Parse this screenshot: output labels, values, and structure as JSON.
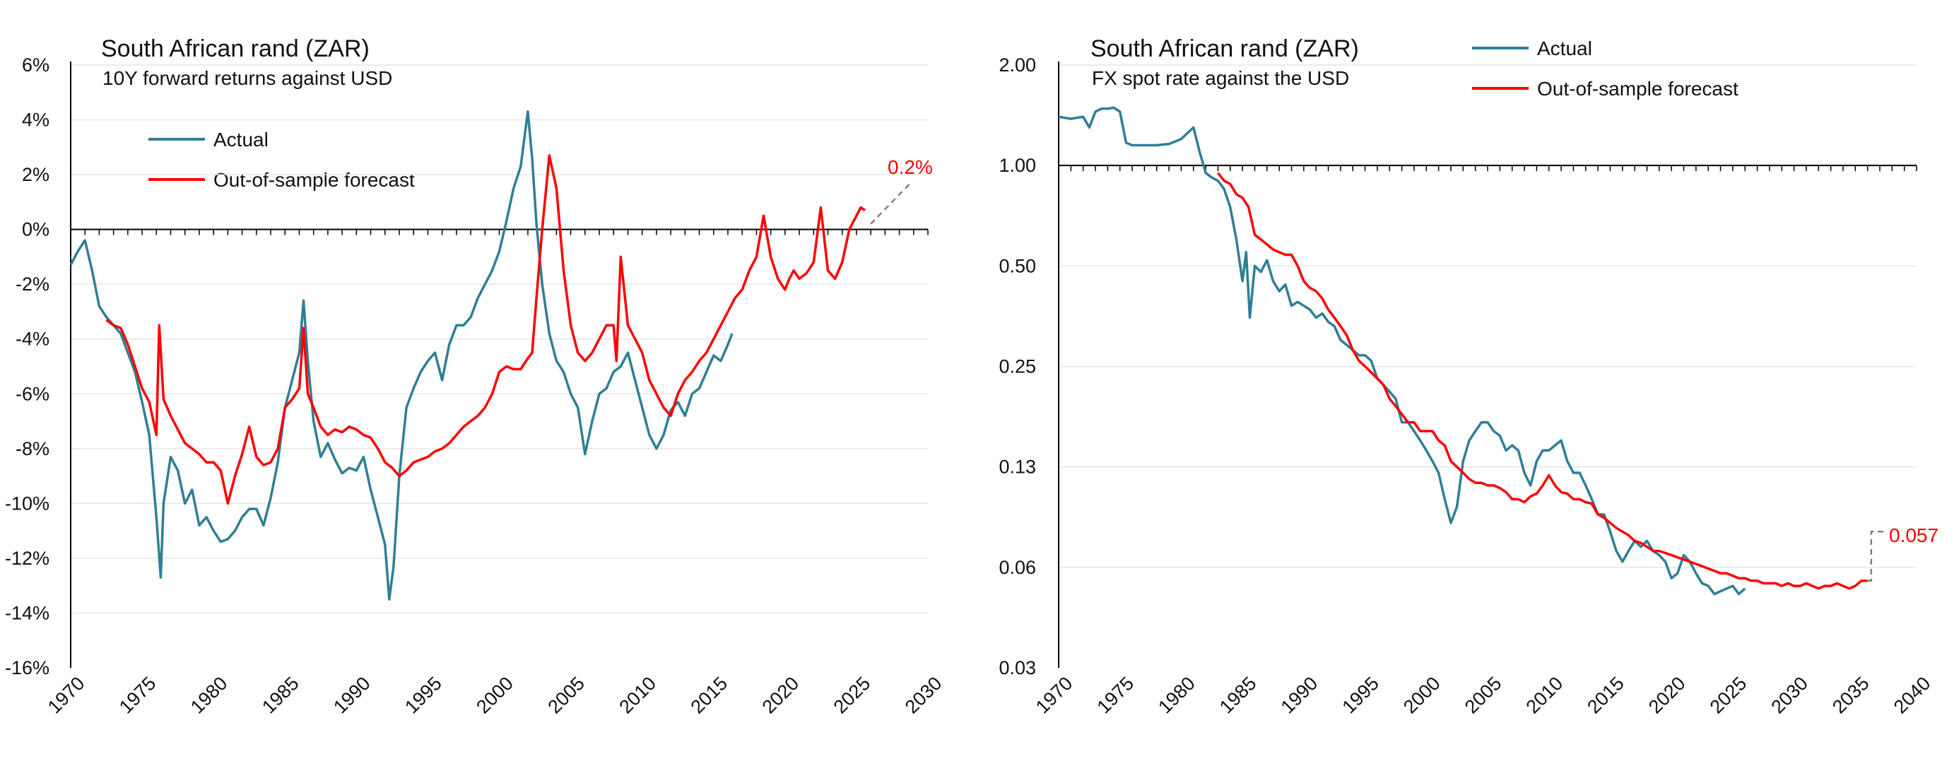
{
  "chart_data": [
    {
      "type": "line",
      "title": "South African rand (ZAR)",
      "subtitle": "10Y forward returns against USD",
      "xlabel": "",
      "ylabel": "",
      "xlim": [
        1970,
        2030
      ],
      "ylim": [
        -16,
        6
      ],
      "x_ticks": [
        "1970",
        "1975",
        "1980",
        "1985",
        "1990",
        "1995",
        "2000",
        "2005",
        "2010",
        "2015",
        "2020",
        "2025",
        "2030"
      ],
      "y_ticks": [
        "6%",
        "4%",
        "2%",
        "0%",
        "-2%",
        "-4%",
        "-6%",
        "-8%",
        "-10%",
        "-12%",
        "-14%",
        "-16%"
      ],
      "legend": {
        "placement": "top-left",
        "entries": [
          "Actual",
          "Out-of-sample forecast"
        ]
      },
      "annotation": {
        "text": "0.2%",
        "color": "#ff0000"
      },
      "series": [
        {
          "name": "Actual",
          "color": "#2e7f96",
          "x": [
            1970,
            1970.5,
            1971,
            1971.5,
            1972,
            1972.5,
            1973,
            1973.5,
            1974,
            1974.5,
            1975,
            1975.5,
            1976,
            1976.3,
            1976.5,
            1977,
            1977.5,
            1978,
            1978.5,
            1979,
            1979.5,
            1980,
            1980.5,
            1981,
            1981.5,
            1982,
            1982.5,
            1983,
            1983.5,
            1984,
            1984.5,
            1985,
            1985.5,
            1986,
            1986.3,
            1986.6,
            1987,
            1987.5,
            1988,
            1988.5,
            1989,
            1989.5,
            1990,
            1990.5,
            1991,
            1991.5,
            1992,
            1992.3,
            1992.6,
            1993,
            1993.5,
            1994,
            1994.5,
            1995,
            1995.5,
            1996,
            1996.5,
            1997,
            1997.5,
            1998,
            1998.5,
            1999,
            1999.5,
            2000,
            2000.5,
            2001,
            2001.5,
            2002,
            2002.3,
            2002.6,
            2003,
            2003.5,
            2004,
            2004.5,
            2005,
            2005.5,
            2006,
            2006.5,
            2007,
            2007.5,
            2008,
            2008.5,
            2009,
            2009.5,
            2010,
            2010.5,
            2011,
            2011.5,
            2012,
            2012.5,
            2013,
            2013.5,
            2014,
            2014.5,
            2015,
            2015.5,
            2016,
            2016.3
          ],
          "y": [
            -1.3,
            -0.8,
            -0.4,
            -1.5,
            -2.8,
            -3.2,
            -3.5,
            -3.8,
            -4.5,
            -5.2,
            -6.3,
            -7.5,
            -10.5,
            -12.7,
            -10,
            -8.3,
            -8.8,
            -10,
            -9.5,
            -10.8,
            -10.5,
            -11,
            -11.4,
            -11.3,
            -11,
            -10.5,
            -10.2,
            -10.2,
            -10.8,
            -9.8,
            -8.5,
            -6.5,
            -5.5,
            -4.5,
            -2.6,
            -4.8,
            -7,
            -8.3,
            -7.8,
            -8.4,
            -8.9,
            -8.7,
            -8.8,
            -8.3,
            -9.5,
            -10.5,
            -11.5,
            -13.5,
            -12.3,
            -9,
            -6.5,
            -5.8,
            -5.2,
            -4.8,
            -4.5,
            -5.5,
            -4.2,
            -3.5,
            -3.5,
            -3.2,
            -2.5,
            -2,
            -1.5,
            -0.8,
            0.3,
            1.5,
            2.3,
            4.3,
            2.6,
            0.2,
            -2,
            -3.8,
            -4.8,
            -5.2,
            -6,
            -6.5,
            -8.2,
            -7,
            -6,
            -5.8,
            -5.2,
            -5,
            -4.5,
            -5.5,
            -6.5,
            -7.5,
            -8,
            -7.5,
            -6.6,
            -6.3,
            -6.8,
            -6,
            -5.8,
            -5.2,
            -4.6,
            -4.8,
            -4.2,
            -3.8
          ]
        },
        {
          "name": "Out-of-sample forecast",
          "color": "#ff0000",
          "x": [
            1972.5,
            1973,
            1973.5,
            1974,
            1974.5,
            1975,
            1975.5,
            1976,
            1976.2,
            1976.5,
            1977,
            1977.5,
            1978,
            1978.5,
            1979,
            1979.5,
            1980,
            1980.5,
            1981,
            1981.5,
            1982,
            1982.5,
            1983,
            1983.5,
            1984,
            1984.5,
            1985,
            1985.5,
            1986,
            1986.3,
            1986.6,
            1987,
            1987.5,
            1988,
            1988.5,
            1989,
            1989.5,
            1990,
            1990.5,
            1991,
            1991.5,
            1992,
            1992.5,
            1993,
            1993.5,
            1994,
            1994.5,
            1995,
            1995.5,
            1996,
            1996.5,
            1997,
            1997.5,
            1998,
            1998.5,
            1999,
            1999.5,
            2000,
            2000.5,
            2001,
            2001.5,
            2002,
            2002.3,
            2002.6,
            2003,
            2003.5,
            2004,
            2004.5,
            2005,
            2005.5,
            2006,
            2006.5,
            2007,
            2007.5,
            2008,
            2008.2,
            2008.5,
            2009,
            2009.5,
            2010,
            2010.5,
            2011,
            2011.5,
            2012,
            2012.5,
            2013,
            2013.5,
            2014,
            2014.5,
            2015,
            2015.5,
            2016,
            2016.5,
            2017,
            2017.5,
            2018,
            2018.5,
            2019,
            2019.5,
            2020,
            2020.3,
            2020.6,
            2021,
            2021.5,
            2022,
            2022.5,
            2023,
            2023.5,
            2024,
            2024.5,
            2025,
            2025.3,
            2025.6
          ],
          "y": [
            -3.3,
            -3.5,
            -3.6,
            -4.2,
            -5,
            -5.8,
            -6.3,
            -7.5,
            -3.5,
            -6.2,
            -6.8,
            -7.3,
            -7.8,
            -8,
            -8.2,
            -8.5,
            -8.5,
            -8.8,
            -10,
            -9,
            -8.2,
            -7.2,
            -8.3,
            -8.6,
            -8.5,
            -8,
            -6.5,
            -6.2,
            -5.8,
            -3.6,
            -6,
            -6.5,
            -7.2,
            -7.5,
            -7.3,
            -7.4,
            -7.2,
            -7.3,
            -7.5,
            -7.6,
            -8,
            -8.5,
            -8.7,
            -9,
            -8.8,
            -8.5,
            -8.4,
            -8.3,
            -8.1,
            -8,
            -7.8,
            -7.5,
            -7.2,
            -7,
            -6.8,
            -6.5,
            -6,
            -5.2,
            -5,
            -5.1,
            -5.1,
            -4.7,
            -4.5,
            -2.5,
            0,
            2.7,
            1.5,
            -1.5,
            -3.5,
            -4.5,
            -4.8,
            -4.5,
            -4,
            -3.5,
            -3.5,
            -4.8,
            -1,
            -3.5,
            -4,
            -4.5,
            -5.5,
            -6,
            -6.5,
            -6.8,
            -6,
            -5.5,
            -5.2,
            -4.8,
            -4.5,
            -4,
            -3.5,
            -3,
            -2.5,
            -2.2,
            -1.5,
            -1,
            0.5,
            -1,
            -1.8,
            -2.2,
            -1.8,
            -1.5,
            -1.8,
            -1.6,
            -1.2,
            0.8,
            -1.5,
            -1.8,
            -1.2,
            0,
            0.5,
            0.8,
            0.7
          ]
        },
        {
          "name": "Extrapolation",
          "color": "#808080",
          "dashed": true,
          "x": [
            2026,
            2028.8
          ],
          "y": [
            0.2,
            1.7
          ]
        }
      ]
    },
    {
      "type": "line",
      "title": "South African rand (ZAR)",
      "subtitle": "FX spot rate against the USD",
      "xlabel": "",
      "ylabel": "",
      "xlim": [
        1970,
        2040
      ],
      "ylim": [
        0.03,
        2.0
      ],
      "y_scale": "log",
      "x_ticks": [
        "1970",
        "1975",
        "1980",
        "1985",
        "1990",
        "1995",
        "2000",
        "2005",
        "2010",
        "2015",
        "2020",
        "2025",
        "2030",
        "2035",
        "2040"
      ],
      "y_ticks": [
        {
          "label": "2.00",
          "value": 2
        },
        {
          "label": "1.00",
          "value": 1
        },
        {
          "label": "0.50",
          "value": 0.5
        },
        {
          "label": "0.25",
          "value": 0.25
        },
        {
          "label": "0.13",
          "value": 0.125
        },
        {
          "label": "0.06",
          "value": 0.0625
        },
        {
          "label": "0.03",
          "value": 0.03125
        }
      ],
      "legend": {
        "placement": "top-center",
        "entries": [
          "Actual",
          "Out-of-sample forecast"
        ]
      },
      "annotation": {
        "text": "0.057",
        "color": "#ff0000"
      },
      "series": [
        {
          "name": "Actual",
          "color": "#2e7f96",
          "x": [
            1970,
            1971,
            1972,
            1972.5,
            1973,
            1973.5,
            1974,
            1974.5,
            1975,
            1975.5,
            1976,
            1977,
            1978,
            1979,
            1980,
            1980.5,
            1981,
            1981.5,
            1982,
            1982.5,
            1983,
            1983.5,
            1984,
            1984.5,
            1985,
            1985.3,
            1985.6,
            1986,
            1986.5,
            1987,
            1987.5,
            1988,
            1988.5,
            1989,
            1989.5,
            1990,
            1990.5,
            1991,
            1991.5,
            1992,
            1992.5,
            1993,
            1993.5,
            1994,
            1994.5,
            1995,
            1995.5,
            1996,
            1996.5,
            1997,
            1997.5,
            1998,
            1998.5,
            1999,
            1999.5,
            2000,
            2000.5,
            2001,
            2001.5,
            2002,
            2002.5,
            2003,
            2003.5,
            2004,
            2004.5,
            2005,
            2005.5,
            2006,
            2006.5,
            2007,
            2007.5,
            2008,
            2008.5,
            2009,
            2009.5,
            2010,
            2010.5,
            2011,
            2011.5,
            2012,
            2012.5,
            2013,
            2013.5,
            2014,
            2014.5,
            2015,
            2015.5,
            2016,
            2016.5,
            2017,
            2017.5,
            2018,
            2018.5,
            2019,
            2019.5,
            2020,
            2020.5,
            2021,
            2021.5,
            2022,
            2022.5,
            2023,
            2023.5,
            2024,
            2024.5,
            2025,
            2025.5,
            2026
          ],
          "y": [
            1.4,
            1.38,
            1.4,
            1.3,
            1.45,
            1.48,
            1.48,
            1.49,
            1.45,
            1.17,
            1.15,
            1.15,
            1.15,
            1.16,
            1.2,
            1.25,
            1.3,
            1.1,
            0.95,
            0.92,
            0.9,
            0.85,
            0.75,
            0.6,
            0.45,
            0.55,
            0.35,
            0.5,
            0.48,
            0.52,
            0.45,
            0.42,
            0.44,
            0.38,
            0.39,
            0.38,
            0.37,
            0.35,
            0.36,
            0.34,
            0.33,
            0.3,
            0.29,
            0.28,
            0.27,
            0.27,
            0.26,
            0.23,
            0.22,
            0.21,
            0.2,
            0.17,
            0.17,
            0.16,
            0.15,
            0.14,
            0.13,
            0.12,
            0.1,
            0.085,
            0.095,
            0.13,
            0.15,
            0.16,
            0.17,
            0.17,
            0.16,
            0.155,
            0.14,
            0.145,
            0.14,
            0.12,
            0.11,
            0.13,
            0.14,
            0.14,
            0.145,
            0.15,
            0.13,
            0.12,
            0.12,
            0.11,
            0.1,
            0.09,
            0.09,
            0.08,
            0.07,
            0.065,
            0.07,
            0.075,
            0.072,
            0.075,
            0.07,
            0.068,
            0.065,
            0.058,
            0.06,
            0.068,
            0.065,
            0.06,
            0.056,
            0.055,
            0.052,
            0.053,
            0.054,
            0.055,
            0.052,
            0.054
          ]
        },
        {
          "name": "Out-of-sample forecast",
          "color": "#ff0000",
          "x": [
            1983,
            1983.5,
            1984,
            1984.5,
            1985,
            1985.5,
            1986,
            1986.5,
            1987,
            1987.5,
            1988,
            1988.5,
            1989,
            1989.5,
            1990,
            1990.5,
            1991,
            1991.5,
            1992,
            1992.5,
            1993,
            1993.5,
            1994,
            1994.5,
            1995,
            1995.5,
            1996,
            1996.5,
            1997,
            1997.5,
            1998,
            1998.5,
            1999,
            1999.5,
            2000,
            2000.5,
            2001,
            2001.5,
            2002,
            2002.5,
            2003,
            2003.5,
            2004,
            2004.5,
            2005,
            2005.5,
            2006,
            2006.5,
            2007,
            2007.5,
            2008,
            2008.5,
            2009,
            2009.5,
            2010,
            2010.5,
            2011,
            2011.5,
            2012,
            2012.5,
            2013,
            2013.5,
            2014,
            2014.5,
            2015,
            2015.5,
            2016,
            2016.5,
            2017,
            2017.5,
            2018,
            2018.5,
            2019,
            2019.5,
            2020,
            2020.5,
            2021,
            2021.5,
            2022,
            2022.5,
            2023,
            2023.5,
            2024,
            2024.5,
            2025,
            2025.5,
            2026,
            2026.5,
            2027,
            2027.5,
            2028,
            2028.5,
            2029,
            2029.5,
            2030,
            2030.5,
            2031,
            2031.5,
            2032,
            2032.5,
            2033,
            2033.5,
            2034,
            2034.5,
            2035,
            2035.5,
            2036
          ],
          "y": [
            0.95,
            0.9,
            0.88,
            0.82,
            0.8,
            0.75,
            0.62,
            0.6,
            0.58,
            0.56,
            0.55,
            0.54,
            0.54,
            0.5,
            0.45,
            0.43,
            0.42,
            0.4,
            0.37,
            0.35,
            0.33,
            0.31,
            0.28,
            0.26,
            0.25,
            0.24,
            0.23,
            0.22,
            0.2,
            0.19,
            0.18,
            0.17,
            0.17,
            0.16,
            0.16,
            0.16,
            0.15,
            0.145,
            0.13,
            0.125,
            0.12,
            0.115,
            0.112,
            0.112,
            0.11,
            0.11,
            0.108,
            0.105,
            0.1,
            0.1,
            0.098,
            0.102,
            0.104,
            0.11,
            0.118,
            0.11,
            0.105,
            0.104,
            0.1,
            0.1,
            0.098,
            0.097,
            0.09,
            0.088,
            0.085,
            0.082,
            0.08,
            0.078,
            0.075,
            0.074,
            0.072,
            0.07,
            0.07,
            0.069,
            0.068,
            0.067,
            0.066,
            0.065,
            0.064,
            0.063,
            0.062,
            0.061,
            0.06,
            0.06,
            0.059,
            0.058,
            0.058,
            0.057,
            0.057,
            0.056,
            0.056,
            0.056,
            0.055,
            0.056,
            0.055,
            0.055,
            0.056,
            0.055,
            0.054,
            0.055,
            0.055,
            0.056,
            0.055,
            0.054,
            0.055,
            0.057,
            0.057
          ]
        },
        {
          "name": "Extrapolation",
          "color": "#808080",
          "dashed": true,
          "x": [
            2036,
            2036.3,
            2036.3,
            2037.3
          ],
          "y": [
            0.057,
            0.057,
            0.08,
            0.08
          ]
        }
      ]
    }
  ]
}
